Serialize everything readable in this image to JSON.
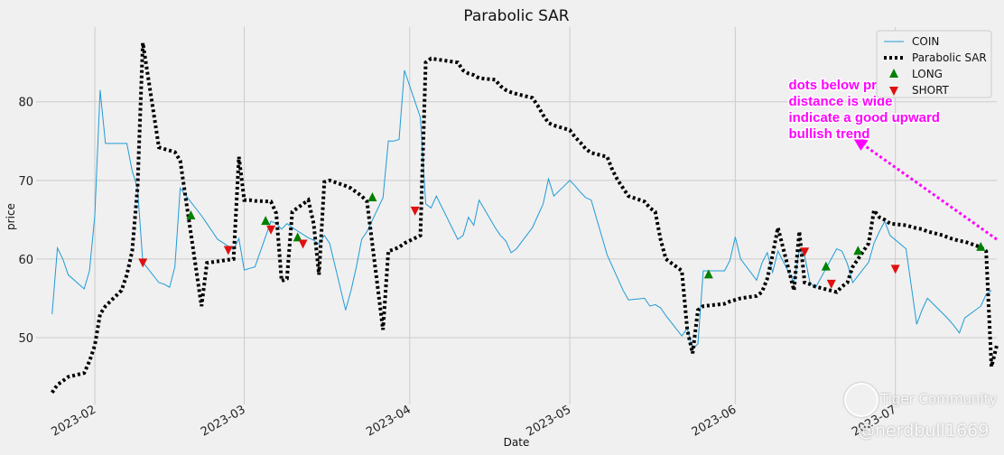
{
  "chart_data": {
    "type": "line",
    "title": "Parabolic SAR",
    "xlabel": "Date",
    "ylabel": "price",
    "ylim": [
      41.5,
      89.5
    ],
    "yticks": [
      50,
      60,
      70,
      80
    ],
    "xlim": [
      "2023-01-21",
      "2023-07-20"
    ],
    "xticks": [
      {
        "date": "2023-02-01",
        "label": "2023-02"
      },
      {
        "date": "2023-03-01",
        "label": "2023-03"
      },
      {
        "date": "2023-04-01",
        "label": "2023-04"
      },
      {
        "date": "2023-05-01",
        "label": "2023-05"
      },
      {
        "date": "2023-06-01",
        "label": "2023-06"
      },
      {
        "date": "2023-07-01",
        "label": "2023-07"
      }
    ],
    "grid": true,
    "legend_position": "top-right",
    "legend": {
      "coin": "COIN",
      "sar": "Parabolic SAR",
      "long": "LONG",
      "short": "SHORT"
    },
    "colors": {
      "coin": "#1f9bd6",
      "sar": "#000000",
      "long": "#008000",
      "short": "#e01010",
      "annotation": "#ff00ff",
      "background": "#f0f0f0",
      "grid": "#cbcbcb"
    },
    "series": [
      {
        "name": "COIN",
        "style": "line",
        "points": [
          [
            "2023-01-24",
            53.0
          ],
          [
            "2023-01-25",
            61.4
          ],
          [
            "2023-01-26",
            60.0
          ],
          [
            "2023-01-27",
            58.0
          ],
          [
            "2023-01-30",
            56.2
          ],
          [
            "2023-01-31",
            58.5
          ],
          [
            "2023-02-01",
            65.5
          ],
          [
            "2023-02-02",
            81.5
          ],
          [
            "2023-02-03",
            74.7
          ],
          [
            "2023-02-06",
            74.7
          ],
          [
            "2023-02-07",
            74.7
          ],
          [
            "2023-02-08",
            71.2
          ],
          [
            "2023-02-09",
            69.0
          ],
          [
            "2023-02-10",
            59.6
          ],
          [
            "2023-02-13",
            57.0
          ],
          [
            "2023-02-14",
            56.8
          ],
          [
            "2023-02-15",
            56.4
          ],
          [
            "2023-02-16",
            59.0
          ],
          [
            "2023-02-17",
            69.0
          ],
          [
            "2023-02-21",
            65.5
          ],
          [
            "2023-02-22",
            64.5
          ],
          [
            "2023-02-23",
            63.5
          ],
          [
            "2023-02-24",
            62.5
          ],
          [
            "2023-02-27",
            61.2
          ],
          [
            "2023-02-28",
            62.6
          ],
          [
            "2023-03-01",
            58.6
          ],
          [
            "2023-03-02",
            58.8
          ],
          [
            "2023-03-03",
            59.0
          ],
          [
            "2023-03-06",
            64.8
          ],
          [
            "2023-03-07",
            64.5
          ],
          [
            "2023-03-08",
            63.8
          ],
          [
            "2023-03-09",
            64.5
          ],
          [
            "2023-03-10",
            64.0
          ],
          [
            "2023-03-13",
            62.7
          ],
          [
            "2023-03-14",
            62.4
          ],
          [
            "2023-03-15",
            61.9
          ],
          [
            "2023-03-16",
            63.0
          ],
          [
            "2023-03-17",
            62.0
          ],
          [
            "2023-03-20",
            53.5
          ],
          [
            "2023-03-21",
            56.0
          ],
          [
            "2023-03-22",
            59.0
          ],
          [
            "2023-03-23",
            62.5
          ],
          [
            "2023-03-24",
            63.5
          ],
          [
            "2023-03-27",
            67.8
          ],
          [
            "2023-03-28",
            75.0
          ],
          [
            "2023-03-29",
            75.0
          ],
          [
            "2023-03-30",
            75.2
          ],
          [
            "2023-03-31",
            84.0
          ],
          [
            "2023-04-03",
            78.0
          ],
          [
            "2023-04-04",
            67.0
          ],
          [
            "2023-04-05",
            66.5
          ],
          [
            "2023-04-06",
            68.0
          ],
          [
            "2023-04-10",
            62.5
          ],
          [
            "2023-04-11",
            63.0
          ],
          [
            "2023-04-12",
            65.3
          ],
          [
            "2023-04-13",
            64.3
          ],
          [
            "2023-04-14",
            67.5
          ],
          [
            "2023-04-17",
            64.0
          ],
          [
            "2023-04-18",
            63.0
          ],
          [
            "2023-04-19",
            62.3
          ],
          [
            "2023-04-20",
            60.8
          ],
          [
            "2023-04-21",
            61.3
          ],
          [
            "2023-04-24",
            64.0
          ],
          [
            "2023-04-25",
            65.5
          ],
          [
            "2023-04-26",
            67.0
          ],
          [
            "2023-04-27",
            70.2
          ],
          [
            "2023-04-28",
            68.0
          ],
          [
            "2023-05-01",
            70.0
          ],
          [
            "2023-05-02",
            69.3
          ],
          [
            "2023-05-03",
            68.5
          ],
          [
            "2023-05-04",
            67.8
          ],
          [
            "2023-05-05",
            67.5
          ],
          [
            "2023-05-08",
            60.5
          ],
          [
            "2023-05-09",
            59.0
          ],
          [
            "2023-05-10",
            57.5
          ],
          [
            "2023-05-11",
            56.0
          ],
          [
            "2023-05-12",
            54.8
          ],
          [
            "2023-05-15",
            55.0
          ],
          [
            "2023-05-16",
            54.0
          ],
          [
            "2023-05-17",
            54.2
          ],
          [
            "2023-05-18",
            53.8
          ],
          [
            "2023-05-19",
            52.8
          ],
          [
            "2023-05-22",
            50.2
          ],
          [
            "2023-05-23",
            51.2
          ],
          [
            "2023-05-24",
            48.5
          ],
          [
            "2023-05-25",
            49.2
          ],
          [
            "2023-05-26",
            58.5
          ],
          [
            "2023-05-30",
            58.5
          ],
          [
            "2023-05-31",
            59.8
          ],
          [
            "2023-06-01",
            62.8
          ],
          [
            "2023-06-02",
            60.0
          ],
          [
            "2023-06-05",
            57.3
          ],
          [
            "2023-06-06",
            59.5
          ],
          [
            "2023-06-07",
            60.8
          ],
          [
            "2023-06-08",
            58.3
          ],
          [
            "2023-06-09",
            61.0
          ],
          [
            "2023-06-12",
            57.0
          ],
          [
            "2023-06-13",
            61.1
          ],
          [
            "2023-06-14",
            60.4
          ],
          [
            "2023-06-15",
            57.0
          ],
          [
            "2023-06-16",
            56.3
          ],
          [
            "2023-06-20",
            61.3
          ],
          [
            "2023-06-21",
            61.0
          ],
          [
            "2023-06-22",
            59.4
          ],
          [
            "2023-06-23",
            57.0
          ],
          [
            "2023-06-26",
            59.6
          ],
          [
            "2023-06-27",
            62.0
          ],
          [
            "2023-06-28",
            63.5
          ],
          [
            "2023-06-29",
            64.8
          ],
          [
            "2023-06-30",
            63.0
          ],
          [
            "2023-07-03",
            61.3
          ],
          [
            "2023-07-05",
            51.7
          ],
          [
            "2023-07-06",
            53.5
          ],
          [
            "2023-07-07",
            55.0
          ],
          [
            "2023-07-10",
            53.0
          ],
          [
            "2023-07-11",
            52.3
          ],
          [
            "2023-07-12",
            51.5
          ],
          [
            "2023-07-13",
            50.6
          ],
          [
            "2023-07-14",
            52.5
          ],
          [
            "2023-07-17",
            54.0
          ],
          [
            "2023-07-18",
            55.5
          ],
          [
            "2023-07-19",
            56.0
          ]
        ]
      },
      {
        "name": "Parabolic SAR",
        "style": "dotted",
        "points": [
          [
            "2023-01-24",
            43.0
          ],
          [
            "2023-01-25",
            44.0
          ],
          [
            "2023-01-26",
            44.5
          ],
          [
            "2023-01-27",
            45.0
          ],
          [
            "2023-01-30",
            45.5
          ],
          [
            "2023-01-31",
            47.0
          ],
          [
            "2023-02-01",
            49.0
          ],
          [
            "2023-02-02",
            53.0
          ],
          [
            "2023-02-03",
            54.0
          ],
          [
            "2023-02-06",
            56.0
          ],
          [
            "2023-02-07",
            58.0
          ],
          [
            "2023-02-08",
            61.0
          ],
          [
            "2023-02-09",
            69.0
          ],
          [
            "2023-02-10",
            87.5
          ],
          [
            "2023-02-13",
            74.2
          ],
          [
            "2023-02-14",
            74.0
          ],
          [
            "2023-02-15",
            73.8
          ],
          [
            "2023-02-16",
            73.6
          ],
          [
            "2023-02-17",
            72.5
          ],
          [
            "2023-02-21",
            54.0
          ],
          [
            "2023-02-22",
            59.5
          ],
          [
            "2023-02-23",
            59.6
          ],
          [
            "2023-02-24",
            59.7
          ],
          [
            "2023-02-27",
            60.0
          ],
          [
            "2023-02-28",
            73.0
          ],
          [
            "2023-03-01",
            67.5
          ],
          [
            "2023-03-02",
            67.5
          ],
          [
            "2023-03-03",
            67.4
          ],
          [
            "2023-03-06",
            67.3
          ],
          [
            "2023-03-07",
            65.8
          ],
          [
            "2023-03-08",
            57.2
          ],
          [
            "2023-03-09",
            57.5
          ],
          [
            "2023-03-10",
            66.0
          ],
          [
            "2023-03-13",
            67.5
          ],
          [
            "2023-03-14",
            64.5
          ],
          [
            "2023-03-15",
            58.0
          ],
          [
            "2023-03-16",
            69.8
          ],
          [
            "2023-03-17",
            70.0
          ],
          [
            "2023-03-20",
            69.3
          ],
          [
            "2023-03-21",
            69.0
          ],
          [
            "2023-03-22",
            68.5
          ],
          [
            "2023-03-23",
            68.0
          ],
          [
            "2023-03-24",
            67.3
          ],
          [
            "2023-03-27",
            51.0
          ],
          [
            "2023-03-28",
            61.0
          ],
          [
            "2023-03-29",
            61.2
          ],
          [
            "2023-03-30",
            61.5
          ],
          [
            "2023-03-31",
            62.0
          ],
          [
            "2023-04-03",
            63.0
          ],
          [
            "2023-04-04",
            85.0
          ],
          [
            "2023-04-05",
            85.5
          ],
          [
            "2023-04-06",
            85.4
          ],
          [
            "2023-04-10",
            85.0
          ],
          [
            "2023-04-11",
            84.0
          ],
          [
            "2023-04-12",
            83.6
          ],
          [
            "2023-04-13",
            83.4
          ],
          [
            "2023-04-14",
            83.0
          ],
          [
            "2023-04-17",
            82.8
          ],
          [
            "2023-04-18",
            82.0
          ],
          [
            "2023-04-19",
            81.5
          ],
          [
            "2023-04-20",
            81.2
          ],
          [
            "2023-04-21",
            81.0
          ],
          [
            "2023-04-24",
            80.5
          ],
          [
            "2023-04-25",
            79.5
          ],
          [
            "2023-04-26",
            78.3
          ],
          [
            "2023-04-27",
            77.3
          ],
          [
            "2023-04-28",
            77.0
          ],
          [
            "2023-05-01",
            76.4
          ],
          [
            "2023-05-02",
            75.5
          ],
          [
            "2023-05-03",
            74.8
          ],
          [
            "2023-05-04",
            74.0
          ],
          [
            "2023-05-05",
            73.5
          ],
          [
            "2023-05-08",
            73.0
          ],
          [
            "2023-05-09",
            71.3
          ],
          [
            "2023-05-10",
            70.0
          ],
          [
            "2023-05-11",
            69.0
          ],
          [
            "2023-05-12",
            68.0
          ],
          [
            "2023-05-15",
            67.3
          ],
          [
            "2023-05-16",
            66.5
          ],
          [
            "2023-05-17",
            66.0
          ],
          [
            "2023-05-18",
            62.5
          ],
          [
            "2023-05-19",
            60.0
          ],
          [
            "2023-05-22",
            58.5
          ],
          [
            "2023-05-23",
            51.0
          ],
          [
            "2023-05-24",
            48.0
          ],
          [
            "2023-05-25",
            53.5
          ],
          [
            "2023-05-26",
            54.0
          ],
          [
            "2023-05-30",
            54.3
          ],
          [
            "2023-05-31",
            54.6
          ],
          [
            "2023-06-01",
            54.8
          ],
          [
            "2023-06-02",
            55.0
          ],
          [
            "2023-06-05",
            55.3
          ],
          [
            "2023-06-06",
            55.8
          ],
          [
            "2023-06-07",
            57.5
          ],
          [
            "2023-06-08",
            60.5
          ],
          [
            "2023-06-09",
            64.0
          ],
          [
            "2023-06-12",
            56.0
          ],
          [
            "2023-06-13",
            63.5
          ],
          [
            "2023-06-14",
            57.0
          ],
          [
            "2023-06-15",
            56.8
          ],
          [
            "2023-06-16",
            56.5
          ],
          [
            "2023-06-20",
            55.8
          ],
          [
            "2023-06-21",
            56.5
          ],
          [
            "2023-06-22",
            57.0
          ],
          [
            "2023-06-23",
            59.0
          ],
          [
            "2023-06-26",
            62.0
          ],
          [
            "2023-06-27",
            66.2
          ],
          [
            "2023-06-28",
            65.3
          ],
          [
            "2023-06-29",
            65.0
          ],
          [
            "2023-06-30",
            64.5
          ],
          [
            "2023-07-03",
            64.3
          ],
          [
            "2023-07-05",
            63.9
          ],
          [
            "2023-07-06",
            63.8
          ],
          [
            "2023-07-07",
            63.5
          ],
          [
            "2023-07-10",
            63.0
          ],
          [
            "2023-07-11",
            62.7
          ],
          [
            "2023-07-12",
            62.5
          ],
          [
            "2023-07-13",
            62.3
          ],
          [
            "2023-07-14",
            62.2
          ],
          [
            "2023-07-17",
            61.5
          ],
          [
            "2023-07-18",
            61.0
          ],
          [
            "2023-07-19",
            46.3
          ],
          [
            "2023-07-20",
            49.0
          ]
        ]
      }
    ],
    "signals": {
      "long": [
        [
          "2023-02-19",
          65.5
        ],
        [
          "2023-03-05",
          64.8
        ],
        [
          "2023-03-11",
          62.7
        ],
        [
          "2023-03-25",
          67.8
        ],
        [
          "2023-05-27",
          58.0
        ],
        [
          "2023-06-18",
          59.0
        ],
        [
          "2023-06-24",
          61.0
        ],
        [
          "2023-07-17",
          61.5
        ]
      ],
      "short": [
        [
          "2023-02-10",
          59.6
        ],
        [
          "2023-02-26",
          61.2
        ],
        [
          "2023-03-06",
          63.8
        ],
        [
          "2023-03-12",
          62.0
        ],
        [
          "2023-04-02",
          66.2
        ],
        [
          "2023-06-14",
          61.0
        ],
        [
          "2023-06-19",
          56.9
        ],
        [
          "2023-07-01",
          58.8
        ]
      ]
    },
    "annotation": {
      "lines": [
        "dots below price",
        "distance is wide",
        "indicate a good upward",
        "bullish trend"
      ],
      "text_anchor": [
        "2023-06-11",
        81.6
      ],
      "arrow_from": [
        "2023-07-20",
        62.5
      ],
      "arrow_to": [
        "2023-06-23",
        75.5
      ]
    }
  },
  "watermark": {
    "brand": "Tiger Community",
    "handle": "@nerdbull1669"
  }
}
